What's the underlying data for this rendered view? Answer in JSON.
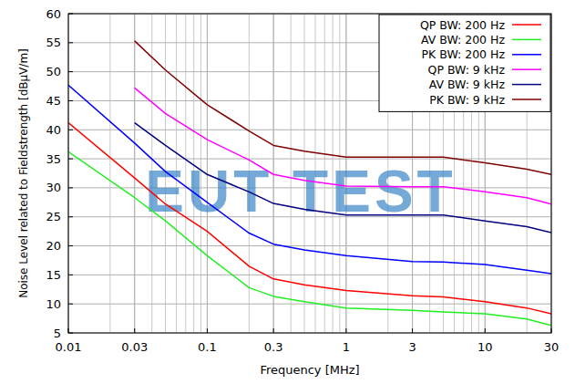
{
  "chart_data": {
    "type": "line",
    "x_label": "Frequency [MHz]",
    "y_label": "Noise Level related to Fieldstrength [dBµV/m]",
    "annotation": "EUT TEST",
    "x": [
      0.01,
      0.03,
      0.05,
      0.1,
      0.2,
      0.3,
      0.5,
      1,
      3,
      5,
      10,
      20,
      30
    ],
    "series": [
      {
        "name": "QP BW: 200 Hz",
        "color": "#ff0000",
        "values": [
          41.2,
          31.7,
          27.2,
          22.5,
          16.5,
          14.3,
          13.3,
          12.3,
          11.4,
          11.2,
          10.4,
          9.3,
          8.3
        ]
      },
      {
        "name": "AV BW: 200 Hz",
        "color": "#22ee22",
        "values": [
          36.2,
          28.3,
          24.3,
          18.3,
          12.8,
          11.3,
          10.4,
          9.3,
          8.9,
          8.6,
          8.3,
          7.4,
          6.3
        ]
      },
      {
        "name": "PK BW: 200 Hz",
        "color": "#0000ff",
        "values": [
          47.7,
          37.7,
          32.8,
          27.5,
          22.2,
          20.3,
          19.3,
          18.3,
          17.3,
          17.2,
          16.8,
          15.8,
          15.2
        ]
      },
      {
        "name": "QP BW: 9 kHz",
        "color": "#ff00ff",
        "values": [
          null,
          47.2,
          42.8,
          38.3,
          34.8,
          32.3,
          31.3,
          30.3,
          30.2,
          30.2,
          29.3,
          28.3,
          27.2
        ]
      },
      {
        "name": "AV BW: 9 kHz",
        "color": "#000080",
        "values": [
          null,
          41.2,
          37.3,
          32.3,
          29.3,
          27.3,
          26.3,
          25.3,
          25.3,
          25.3,
          24.3,
          23.3,
          22.3
        ]
      },
      {
        "name": "PK BW: 9 kHz",
        "color": "#800000",
        "values": [
          null,
          55.3,
          50.3,
          44.3,
          39.8,
          37.3,
          36.3,
          35.3,
          35.3,
          35.3,
          34.3,
          33.2,
          32.3
        ]
      }
    ],
    "xlim": [
      0.01,
      30
    ],
    "ylim": [
      5,
      60
    ],
    "xticks": [
      0.01,
      0.03,
      0.1,
      0.3,
      1,
      3,
      10,
      30
    ],
    "yticks": [
      5,
      10,
      15,
      20,
      25,
      30,
      35,
      40,
      45,
      50,
      55,
      60
    ],
    "log": "x",
    "grid": true,
    "legend": "upper right"
  }
}
